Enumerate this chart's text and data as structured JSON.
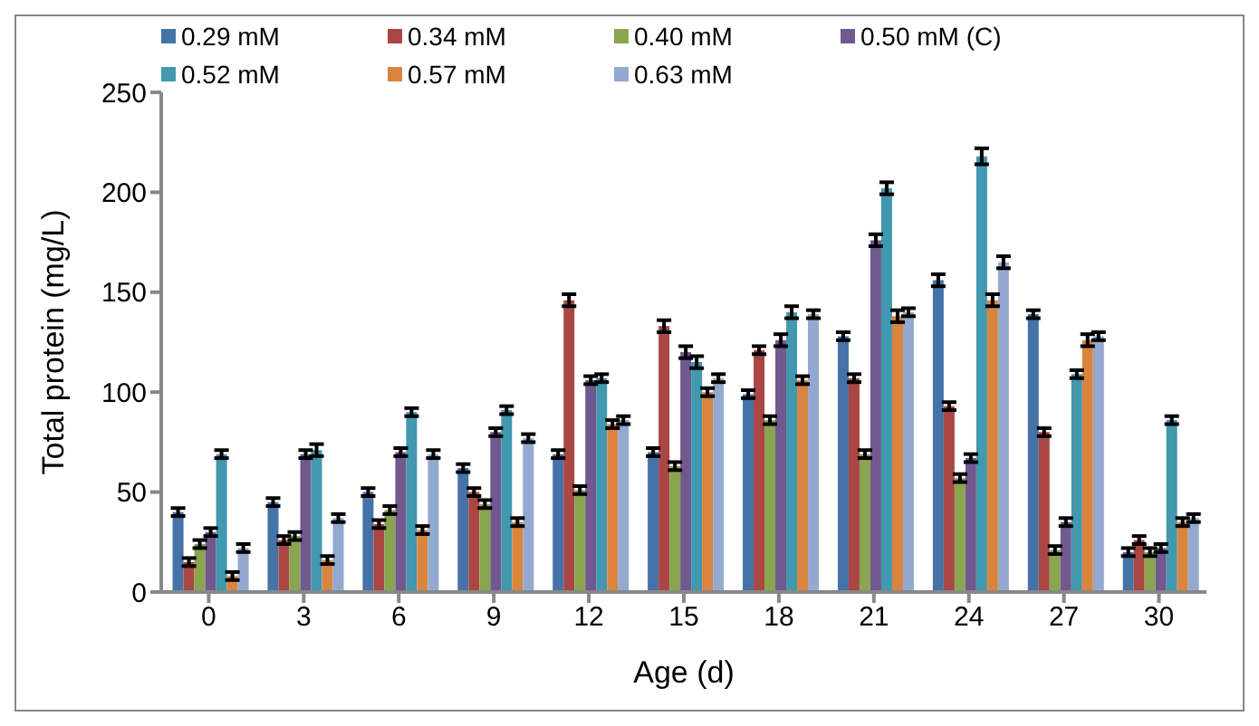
{
  "chart_data": {
    "type": "bar",
    "xlabel": "Age (d)",
    "ylabel": "Total protein  (mg/L)",
    "categories": [
      "0",
      "3",
      "6",
      "9",
      "12",
      "15",
      "18",
      "21",
      "24",
      "27",
      "30"
    ],
    "ylim": [
      0,
      250
    ],
    "yticks": [
      0,
      50,
      100,
      150,
      200,
      250
    ],
    "grid": false,
    "legend": "top",
    "series": [
      {
        "name": "0.29 mM",
        "color": "#4572a7",
        "values": [
          40,
          45,
          50,
          62,
          69,
          70,
          99,
          128,
          156,
          139,
          20
        ],
        "errors": [
          2,
          2,
          2,
          2,
          2,
          2,
          2,
          2,
          3,
          2,
          2
        ]
      },
      {
        "name": "0.34 mM",
        "color": "#aa4643",
        "values": [
          15,
          26,
          34,
          50,
          146,
          133,
          121,
          107,
          93,
          80,
          26
        ],
        "errors": [
          2,
          2,
          2,
          2,
          3,
          3,
          2,
          2,
          2,
          2,
          2
        ]
      },
      {
        "name": "0.40 mM",
        "color": "#89a54e",
        "values": [
          24,
          28,
          41,
          44,
          51,
          63,
          86,
          69,
          57,
          21,
          20
        ],
        "errors": [
          2,
          2,
          2,
          2,
          2,
          2,
          2,
          2,
          2,
          2,
          2
        ]
      },
      {
        "name": "0.50 mM (C)",
        "color": "#71588f",
        "values": [
          30,
          69,
          70,
          80,
          106,
          120,
          126,
          176,
          67,
          35,
          22
        ],
        "errors": [
          2,
          2,
          2,
          2,
          2,
          3,
          3,
          3,
          2,
          2,
          2
        ]
      },
      {
        "name": "0.52 mM",
        "color": "#4198af",
        "values": [
          69,
          71,
          90,
          91,
          107,
          115,
          140,
          202,
          218,
          109,
          86
        ],
        "errors": [
          2,
          3,
          2,
          2,
          2,
          3,
          3,
          3,
          4,
          2,
          2
        ]
      },
      {
        "name": "0.57 mM",
        "color": "#db843d",
        "values": [
          8,
          16,
          31,
          35,
          84,
          100,
          106,
          138,
          146,
          126,
          35
        ],
        "errors": [
          2,
          2,
          2,
          2,
          2,
          2,
          2,
          3,
          3,
          3,
          2
        ]
      },
      {
        "name": "0.63 mM",
        "color": "#93a9cf",
        "values": [
          22,
          37,
          69,
          77,
          86,
          107,
          139,
          140,
          165,
          128,
          37
        ],
        "errors": [
          2,
          2,
          2,
          2,
          2,
          2,
          2,
          2,
          3,
          2,
          2
        ]
      }
    ]
  }
}
